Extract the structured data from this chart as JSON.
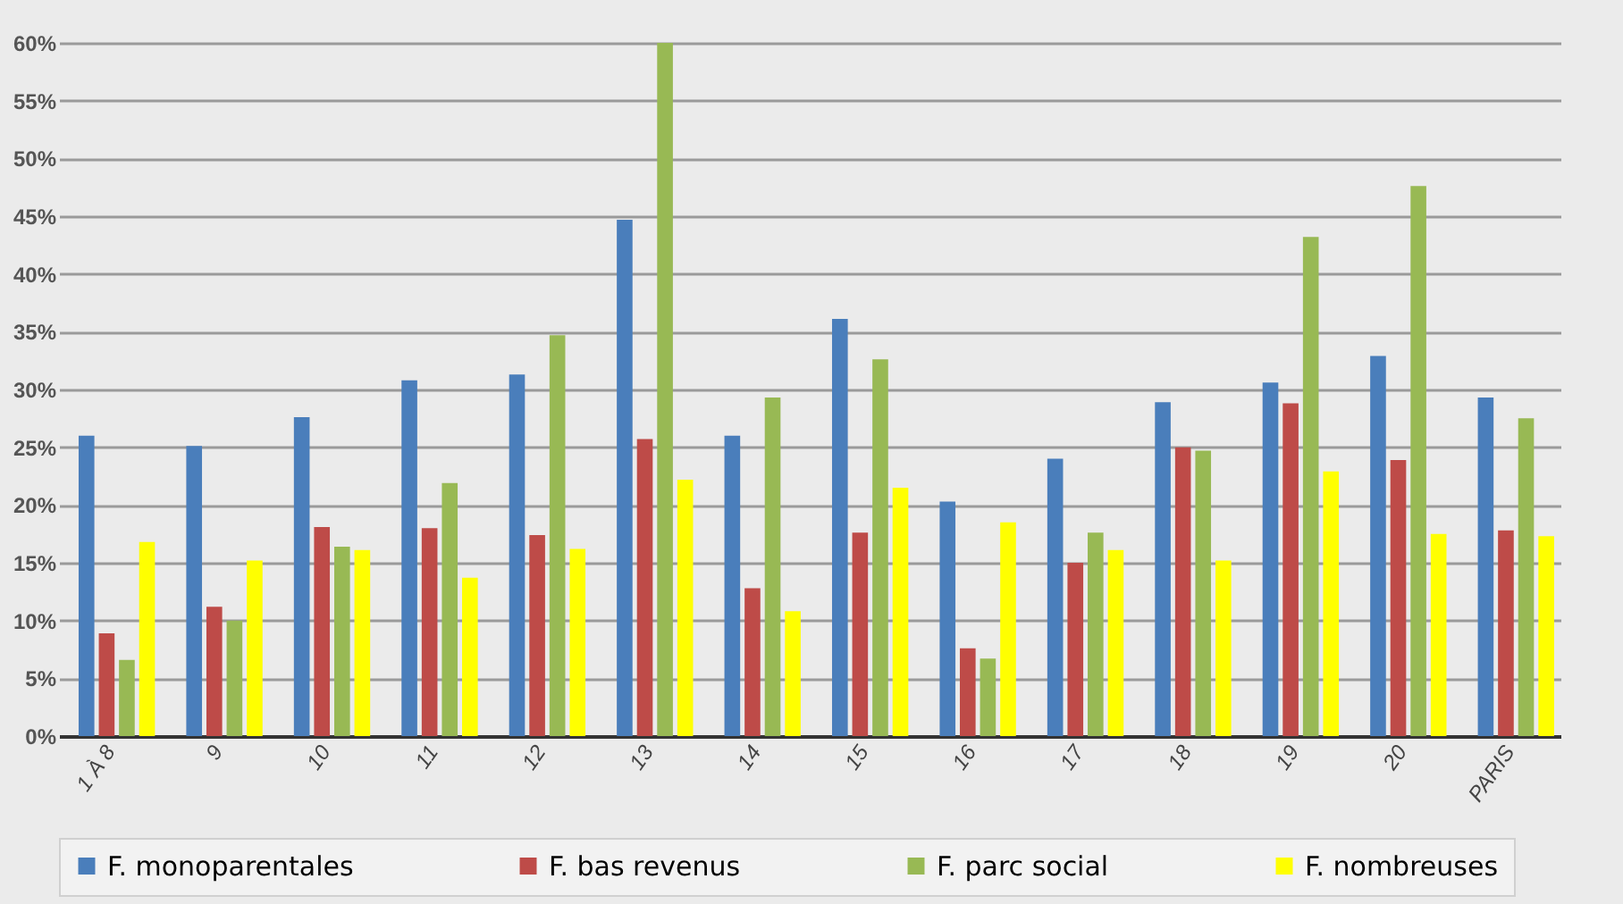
{
  "chart_data": {
    "type": "bar",
    "categories": [
      "1 À 8",
      "9",
      "10",
      "11",
      "12",
      "13",
      "14",
      "15",
      "16",
      "17",
      "18",
      "19",
      "20",
      "PARIS"
    ],
    "series": [
      {
        "name": "F. monoparentales",
        "color": "#4a7ebb",
        "values": [
          26,
          25.1,
          27.6,
          30.8,
          31.3,
          44.7,
          26,
          36.1,
          20.3,
          24,
          28.9,
          30.6,
          32.9,
          29.3
        ]
      },
      {
        "name": "F. bas revenus",
        "color": "#be4b48",
        "values": [
          8.9,
          11.2,
          18.1,
          18,
          17.4,
          25.7,
          12.8,
          17.6,
          7.6,
          15,
          25,
          28.8,
          23.9,
          17.8
        ]
      },
      {
        "name": "F. parc social",
        "color": "#98b954",
        "values": [
          6.6,
          10,
          16.4,
          21.9,
          34.7,
          60,
          29.3,
          32.6,
          6.7,
          17.6,
          24.7,
          43.2,
          47.6,
          27.5
        ]
      },
      {
        "name": "F. nombreuses",
        "color": "#ffff00",
        "values": [
          16.8,
          15.2,
          16.1,
          13.7,
          16.2,
          22.2,
          10.8,
          21.5,
          18.5,
          16.1,
          15.2,
          22.9,
          17.5,
          17.3
        ]
      }
    ],
    "ylim": [
      0,
      60
    ],
    "yticks": [
      {
        "value": 0,
        "label": "0%"
      },
      {
        "value": 5,
        "label": "5%"
      },
      {
        "value": 10,
        "label": "10%"
      },
      {
        "value": 15,
        "label": "15%"
      },
      {
        "value": 20,
        "label": "20%"
      },
      {
        "value": 25,
        "label": "25%"
      },
      {
        "value": 30,
        "label": "30%"
      },
      {
        "value": 35,
        "label": "35%"
      },
      {
        "value": 40,
        "label": "40%"
      },
      {
        "value": 45,
        "label": "45%"
      },
      {
        "value": 50,
        "label": "50%"
      },
      {
        "value": 55,
        "label": "55%"
      },
      {
        "value": 60,
        "label": "60%"
      }
    ],
    "grid": "y",
    "legend": "bottom"
  }
}
